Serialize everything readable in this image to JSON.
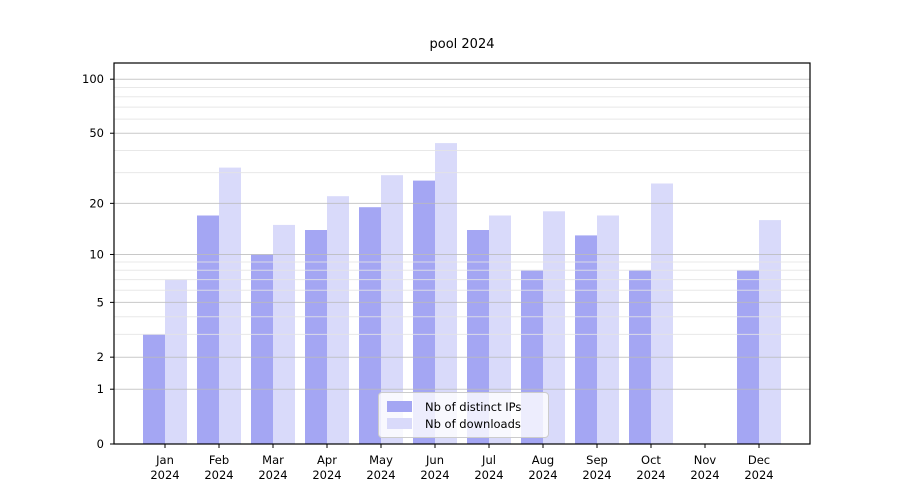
{
  "title": "pool 2024",
  "chart_data": {
    "type": "bar",
    "title": "pool 2024",
    "yscale": "log1p",
    "grid": true,
    "legend_position": "lower center",
    "categories": [
      "Jan 2024",
      "Feb 2024",
      "Mar 2024",
      "Apr 2024",
      "May 2024",
      "Jun 2024",
      "Jul 2024",
      "Aug 2024",
      "Sep 2024",
      "Oct 2024",
      "Nov 2024",
      "Dec 2024"
    ],
    "series": [
      {
        "name": "Nb of distinct IPs",
        "color": "#a4a6f3",
        "values": [
          3,
          17,
          10,
          14,
          19,
          27,
          14,
          8,
          13,
          8,
          0,
          8
        ]
      },
      {
        "name": "Nb of downloads",
        "color": "#d9dafa",
        "values": [
          7,
          32,
          15,
          22,
          29,
          44,
          17,
          18,
          17,
          26,
          0,
          16
        ]
      }
    ],
    "yticks": [
      0,
      1,
      2,
      5,
      10,
      20,
      50,
      100
    ],
    "minor_yticks": [
      3,
      4,
      6,
      7,
      8,
      9,
      30,
      40,
      60,
      70,
      80,
      90
    ],
    "ylim": [
      0,
      123
    ]
  },
  "colors": {
    "axis": "#000000",
    "grid_major": "#bbbbbb",
    "grid_minor": "#e4e4e4",
    "text": "#000000",
    "legend_border": "#cccccc"
  }
}
